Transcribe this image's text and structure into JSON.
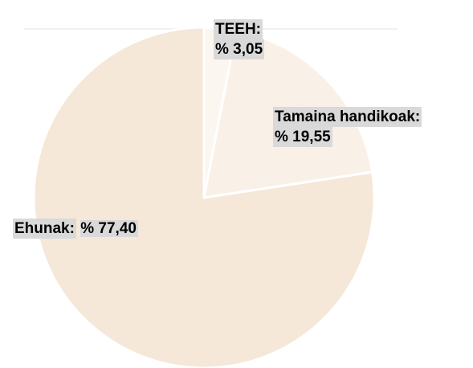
{
  "chart_data": {
    "type": "pie",
    "title": "",
    "slices": [
      {
        "label": "TEEH:",
        "value_label": "% 3,05",
        "value": 3.05,
        "color": "#fbf6ef"
      },
      {
        "label": "Tamaina handikoak:",
        "value_label": "% 19,55",
        "value": 19.55,
        "color": "#f9f0e8"
      },
      {
        "label": "Ehunak:",
        "value_label": "% 77,40",
        "value": 77.4,
        "color": "#f5e8d8"
      }
    ],
    "start_angle_deg": 0,
    "direction": "clockwise",
    "legend": "none"
  }
}
